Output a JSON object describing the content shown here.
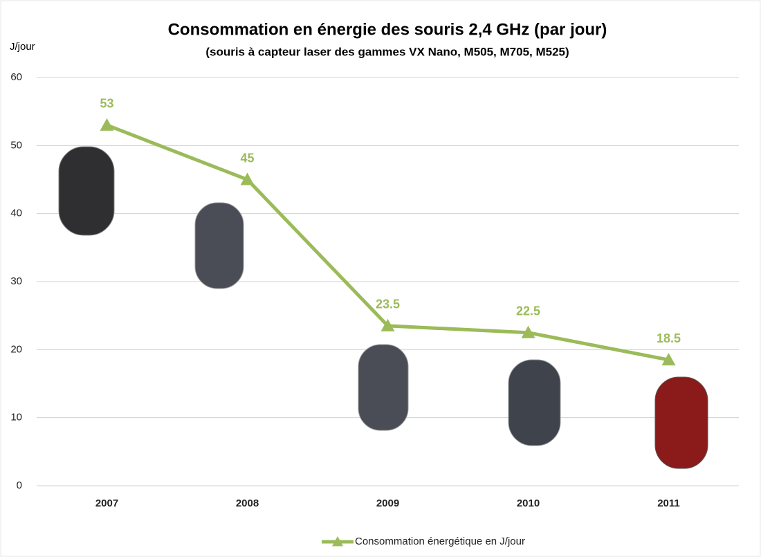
{
  "chart_data": {
    "type": "line",
    "title": "Consommation en énergie des souris 2,4 GHz (par jour)",
    "subtitle": "(souris à capteur laser des gammes VX Nano, M505, M705, M525)",
    "y_label": "J/jour",
    "categories": [
      "2007",
      "2008",
      "2009",
      "2010",
      "2011"
    ],
    "series": [
      {
        "name": "Consommation énergétique en J/jour",
        "color": "#9bbb59",
        "values": [
          53,
          45,
          23.5,
          22.5,
          18.5
        ]
      }
    ],
    "ylim": [
      0,
      60
    ],
    "yticks": [
      0,
      10,
      20,
      30,
      40,
      50,
      60
    ],
    "grid": true,
    "legend": "bottom"
  }
}
